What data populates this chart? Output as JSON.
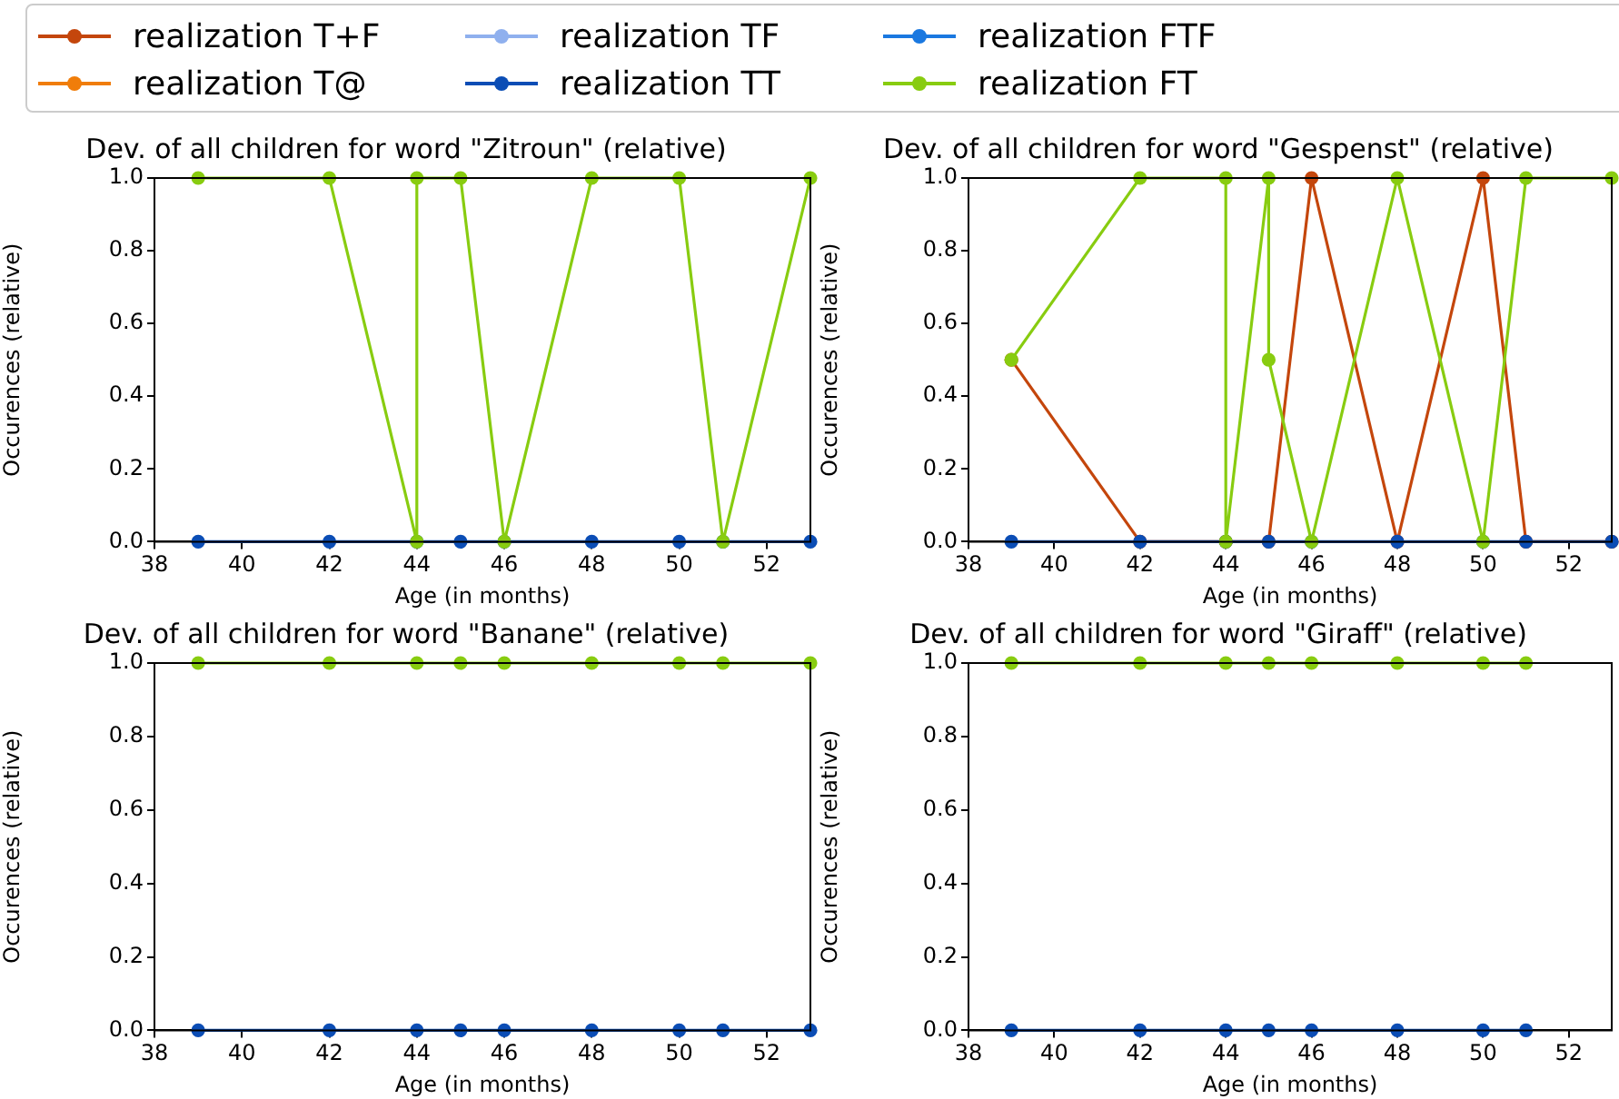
{
  "chart_data": [
    {
      "type": "line",
      "title": "Dev. of all children for word \"Zitroun\" (relative)",
      "xlabel": "Age (in months)",
      "ylabel": "Occurences (relative)",
      "xlim": [
        38,
        53
      ],
      "xticks": [
        38,
        40,
        42,
        44,
        46,
        48,
        50,
        52
      ],
      "ylim": [
        0,
        1
      ],
      "yticks": [
        {
          "value": 0,
          "label": "0.0"
        },
        {
          "value": 0.2,
          "label": "0.2"
        },
        {
          "value": 0.4,
          "label": "0.4"
        },
        {
          "value": 0.6,
          "label": "0.6"
        },
        {
          "value": 0.8,
          "label": "0.8"
        },
        {
          "value": 1,
          "label": "1.0"
        }
      ],
      "grid": false,
      "legend": "top",
      "marker": "circle",
      "line_style": "solid",
      "series": [
        {
          "name": "realization T+F",
          "color": "#c4460c"
        },
        {
          "name": "realization T@",
          "color": "#f07d0a"
        },
        {
          "name": "realization TF",
          "color": "#8fb0ee"
        },
        {
          "name": "realization TT",
          "color": "#0b4db5",
          "x": [
            39,
            42,
            44,
            45,
            46,
            48,
            50,
            51,
            53
          ],
          "values": [
            0,
            0,
            0,
            0,
            0,
            0,
            0,
            0,
            0
          ]
        },
        {
          "name": "realization FTF",
          "color": "#1a78e0"
        },
        {
          "name": "realization FT",
          "color": "#88cc10",
          "x": [
            39,
            42,
            44,
            44,
            45,
            46,
            48,
            50,
            51,
            53
          ],
          "values": [
            1,
            1,
            0,
            1,
            1,
            0,
            1,
            1,
            0,
            1
          ]
        }
      ]
    },
    {
      "type": "line",
      "title": "Dev. of all children for word \"Gespenst\" (relative)",
      "xlabel": "Age (in months)",
      "ylabel": "Occurences (relative)",
      "xlim": [
        38,
        53
      ],
      "xticks": [
        38,
        40,
        42,
        44,
        46,
        48,
        50,
        52
      ],
      "ylim": [
        0,
        1
      ],
      "yticks": [
        {
          "value": 0,
          "label": "0.0"
        },
        {
          "value": 0.2,
          "label": "0.2"
        },
        {
          "value": 0.4,
          "label": "0.4"
        },
        {
          "value": 0.6,
          "label": "0.6"
        },
        {
          "value": 0.8,
          "label": "0.8"
        },
        {
          "value": 1,
          "label": "1.0"
        }
      ],
      "grid": false,
      "marker": "circle",
      "line_style": "solid",
      "series": [
        {
          "color": "#c4460c",
          "x": [
            39,
            42,
            44,
            45,
            46,
            48,
            50,
            51,
            53
          ],
          "values": [
            0.5,
            0,
            0,
            0,
            1,
            0,
            1,
            0,
            0
          ]
        },
        {
          "color": "#0b4db5",
          "x": [
            39,
            42,
            44,
            45,
            46,
            48,
            50,
            51,
            53
          ],
          "values": [
            0,
            0,
            0,
            0,
            0,
            0,
            0,
            0,
            0
          ]
        },
        {
          "color": "#88cc10",
          "x": [
            39,
            42,
            44,
            44,
            45,
            45,
            46,
            48,
            50,
            51,
            53
          ],
          "values": [
            0.5,
            1,
            1,
            0,
            1,
            0.5,
            0,
            1,
            0,
            1,
            1
          ]
        }
      ]
    },
    {
      "type": "line",
      "title": "Dev. of all children for word \"Banane\" (relative)",
      "xlabel": "Age (in months)",
      "ylabel": "Occurences (relative)",
      "xlim": [
        38,
        53
      ],
      "xticks": [
        38,
        40,
        42,
        44,
        46,
        48,
        50,
        52
      ],
      "ylim": [
        0,
        1
      ],
      "yticks": [
        {
          "value": 0,
          "label": "0.0"
        },
        {
          "value": 0.2,
          "label": "0.2"
        },
        {
          "value": 0.4,
          "label": "0.4"
        },
        {
          "value": 0.6,
          "label": "0.6"
        },
        {
          "value": 0.8,
          "label": "0.8"
        },
        {
          "value": 1,
          "label": "1.0"
        }
      ],
      "grid": false,
      "marker": "circle",
      "line_style": "solid",
      "series": [
        {
          "color": "#0b4db5",
          "x": [
            39,
            42,
            44,
            45,
            46,
            48,
            50,
            51,
            53
          ],
          "values": [
            0,
            0,
            0,
            0,
            0,
            0,
            0,
            0,
            0
          ]
        },
        {
          "color": "#88cc10",
          "x": [
            39,
            42,
            44,
            45,
            46,
            48,
            50,
            51,
            53
          ],
          "values": [
            1,
            1,
            1,
            1,
            1,
            1,
            1,
            1,
            1
          ]
        }
      ]
    },
    {
      "type": "line",
      "title": "Dev. of all children for word \"Giraff\" (relative)",
      "xlabel": "Age (in months)",
      "ylabel": "Occurences (relative)",
      "xlim": [
        38,
        53
      ],
      "xticks": [
        38,
        40,
        42,
        44,
        46,
        48,
        50,
        52
      ],
      "ylim": [
        0,
        1
      ],
      "yticks": [
        {
          "value": 0,
          "label": "0.0"
        },
        {
          "value": 0.2,
          "label": "0.2"
        },
        {
          "value": 0.4,
          "label": "0.4"
        },
        {
          "value": 0.6,
          "label": "0.6"
        },
        {
          "value": 0.8,
          "label": "0.8"
        },
        {
          "value": 1,
          "label": "1.0"
        }
      ],
      "grid": false,
      "marker": "circle",
      "line_style": "solid",
      "series": [
        {
          "color": "#0b4db5",
          "x": [
            39,
            42,
            44,
            45,
            46,
            48,
            50,
            51
          ],
          "values": [
            0,
            0,
            0,
            0,
            0,
            0,
            0,
            0
          ]
        },
        {
          "color": "#88cc10",
          "x": [
            39,
            42,
            44,
            45,
            46,
            48,
            50,
            51
          ],
          "values": [
            1,
            1,
            1,
            1,
            1,
            1,
            1,
            1
          ]
        }
      ]
    }
  ]
}
